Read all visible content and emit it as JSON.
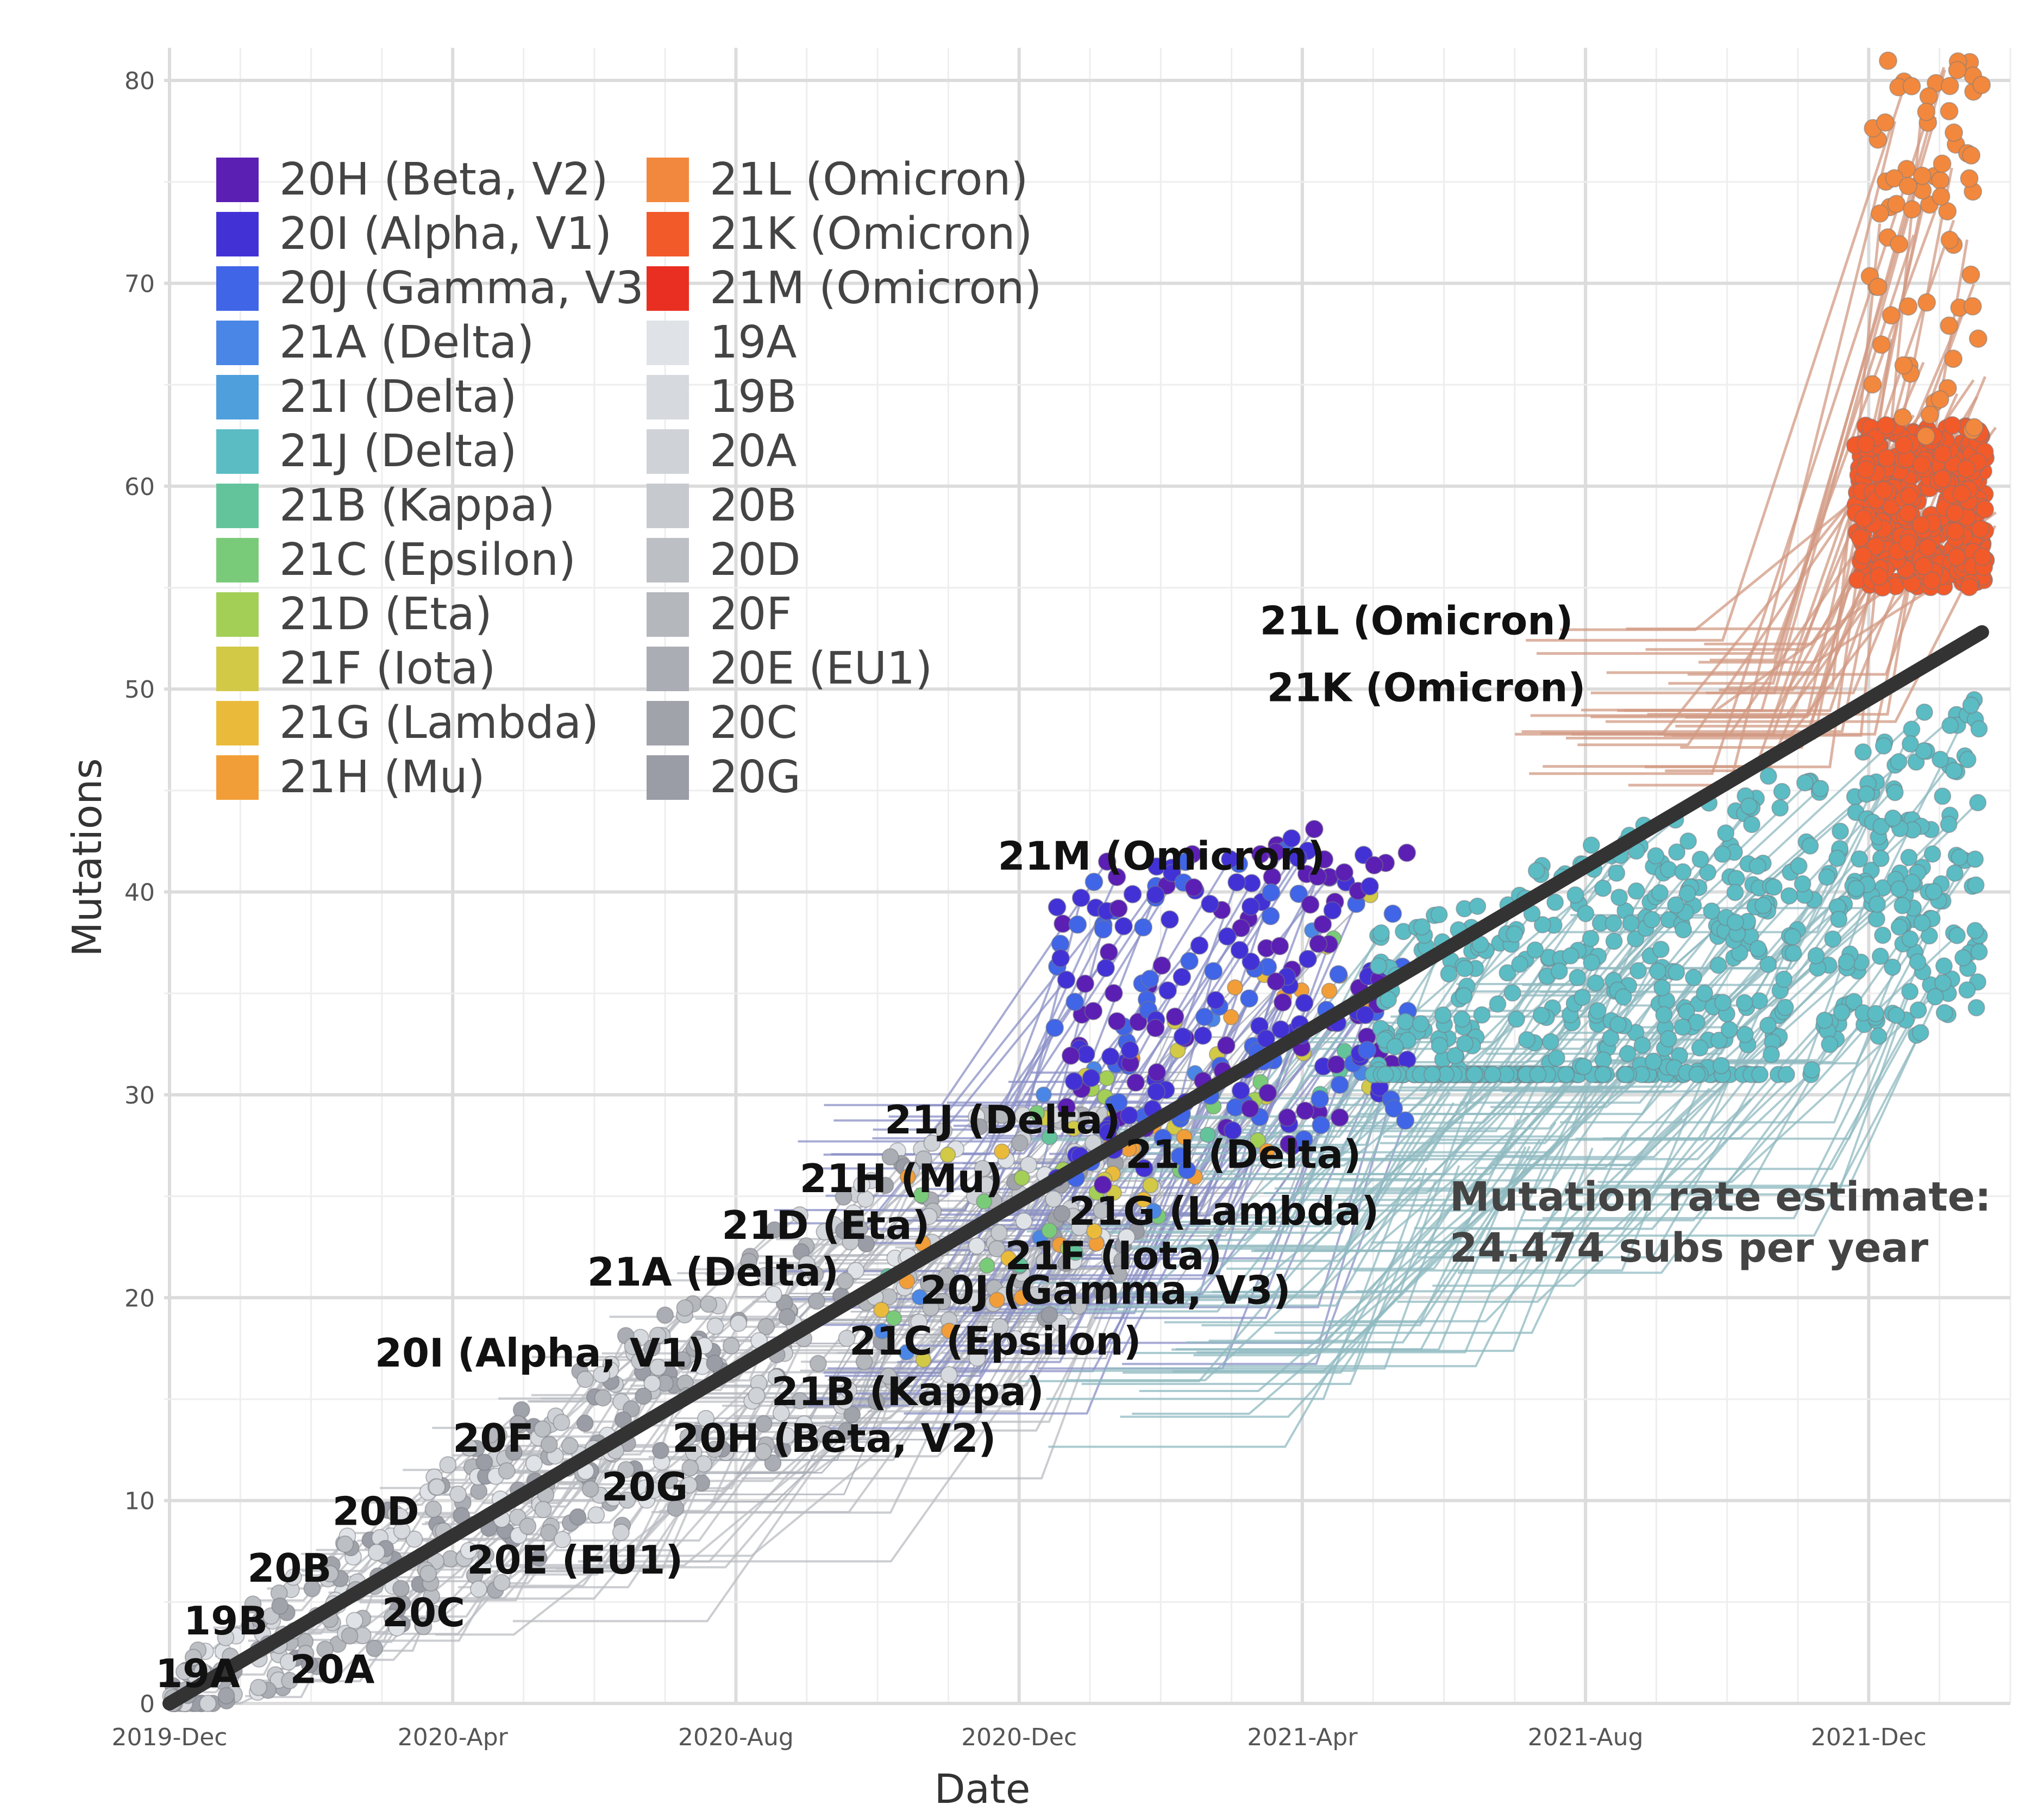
{
  "chart_data": {
    "type": "scatter",
    "title": "",
    "xlabel": "Date",
    "ylabel": "Mutations",
    "x_ticks": [
      "2019-Dec",
      "2020-Apr",
      "2020-Aug",
      "2020-Dec",
      "2021-Apr",
      "2021-Aug",
      "2021-Dec"
    ],
    "y_ticks": [
      "0",
      "10",
      "20",
      "30",
      "40",
      "50",
      "60",
      "70",
      "80"
    ],
    "xlim": [
      0,
      26
    ],
    "ylim": [
      0,
      80
    ],
    "grid": true,
    "legend_position": "top-left",
    "legend": [
      {
        "name": "20H (Beta, V2)",
        "color": "#5b1fb4"
      },
      {
        "name": "20I (Alpha, V1)",
        "color": "#4232d6"
      },
      {
        "name": "20J (Gamma, V3)",
        "color": "#4065e6"
      },
      {
        "name": "21A (Delta)",
        "color": "#4a86e5"
      },
      {
        "name": "21I (Delta)",
        "color": "#4f9fdc"
      },
      {
        "name": "21J (Delta)",
        "color": "#5bbcc4"
      },
      {
        "name": "21B (Kappa)",
        "color": "#63c49c"
      },
      {
        "name": "21C (Epsilon)",
        "color": "#7acb79"
      },
      {
        "name": "21D (Eta)",
        "color": "#a3cf57"
      },
      {
        "name": "21F (Iota)",
        "color": "#d2c947"
      },
      {
        "name": "21G (Lambda)",
        "color": "#eabb3b"
      },
      {
        "name": "21H (Mu)",
        "color": "#f29e38"
      },
      {
        "name": "21L (Omicron)",
        "color": "#f2883d"
      },
      {
        "name": "21K (Omicron)",
        "color": "#f25a2a"
      },
      {
        "name": "21M (Omicron)",
        "color": "#e92f22"
      },
      {
        "name": "19A",
        "color": "#dfe2e6"
      },
      {
        "name": "19B",
        "color": "#d6d9dd"
      },
      {
        "name": "20A",
        "color": "#cfd2d6"
      },
      {
        "name": "20B",
        "color": "#c6c9ce"
      },
      {
        "name": "20D",
        "color": "#bcbfc4"
      },
      {
        "name": "20F",
        "color": "#b4b7bc"
      },
      {
        "name": "20E (EU1)",
        "color": "#aaadb3"
      },
      {
        "name": "20C",
        "color": "#a0a3aa"
      },
      {
        "name": "20G",
        "color": "#9a9ca6"
      }
    ],
    "clade_labels": [
      {
        "text": "19A",
        "x": -0.2,
        "y": 0.8
      },
      {
        "text": "19B",
        "x": 0.2,
        "y": 3.4
      },
      {
        "text": "20A",
        "x": 1.7,
        "y": 1.0
      },
      {
        "text": "20B",
        "x": 1.1,
        "y": 6.0
      },
      {
        "text": "20C",
        "x": 3.0,
        "y": 3.8
      },
      {
        "text": "20D",
        "x": 2.3,
        "y": 8.8
      },
      {
        "text": "20E (EU1)",
        "x": 4.2,
        "y": 6.4
      },
      {
        "text": "20F",
        "x": 4.0,
        "y": 12.4
      },
      {
        "text": "20G",
        "x": 6.1,
        "y": 10.0
      },
      {
        "text": "20H (Beta, V2)",
        "x": 7.1,
        "y": 12.4
      },
      {
        "text": "20I (Alpha, V1)",
        "x": 2.9,
        "y": 16.6
      },
      {
        "text": "21A (Delta)",
        "x": 5.9,
        "y": 20.6
      },
      {
        "text": "21B (Kappa)",
        "x": 8.5,
        "y": 14.7
      },
      {
        "text": "21C (Epsilon)",
        "x": 9.6,
        "y": 17.2
      },
      {
        "text": "21D (Eta)",
        "x": 7.8,
        "y": 22.9
      },
      {
        "text": "20J (Gamma, V3)",
        "x": 10.6,
        "y": 19.7
      },
      {
        "text": "21F (Iota)",
        "x": 11.8,
        "y": 21.4
      },
      {
        "text": "21G (Lambda)",
        "x": 12.7,
        "y": 23.6
      },
      {
        "text": "21H (Mu)",
        "x": 8.9,
        "y": 25.2
      },
      {
        "text": "21I (Delta)",
        "x": 13.5,
        "y": 26.4
      },
      {
        "text": "21J (Delta)",
        "x": 10.1,
        "y": 28.1
      },
      {
        "text": "21M (Omicron)",
        "x": 11.7,
        "y": 41.1
      },
      {
        "text": "21K (Omicron)",
        "x": 15.5,
        "y": 49.4
      },
      {
        "text": "21L (Omicron)",
        "x": 15.4,
        "y": 52.7
      }
    ],
    "regression": {
      "x": [
        0,
        25.6
      ],
      "y": [
        0,
        52.8
      ],
      "rate_text": [
        "Mutation rate estimate:",
        "24.474 subs per year"
      ]
    }
  }
}
